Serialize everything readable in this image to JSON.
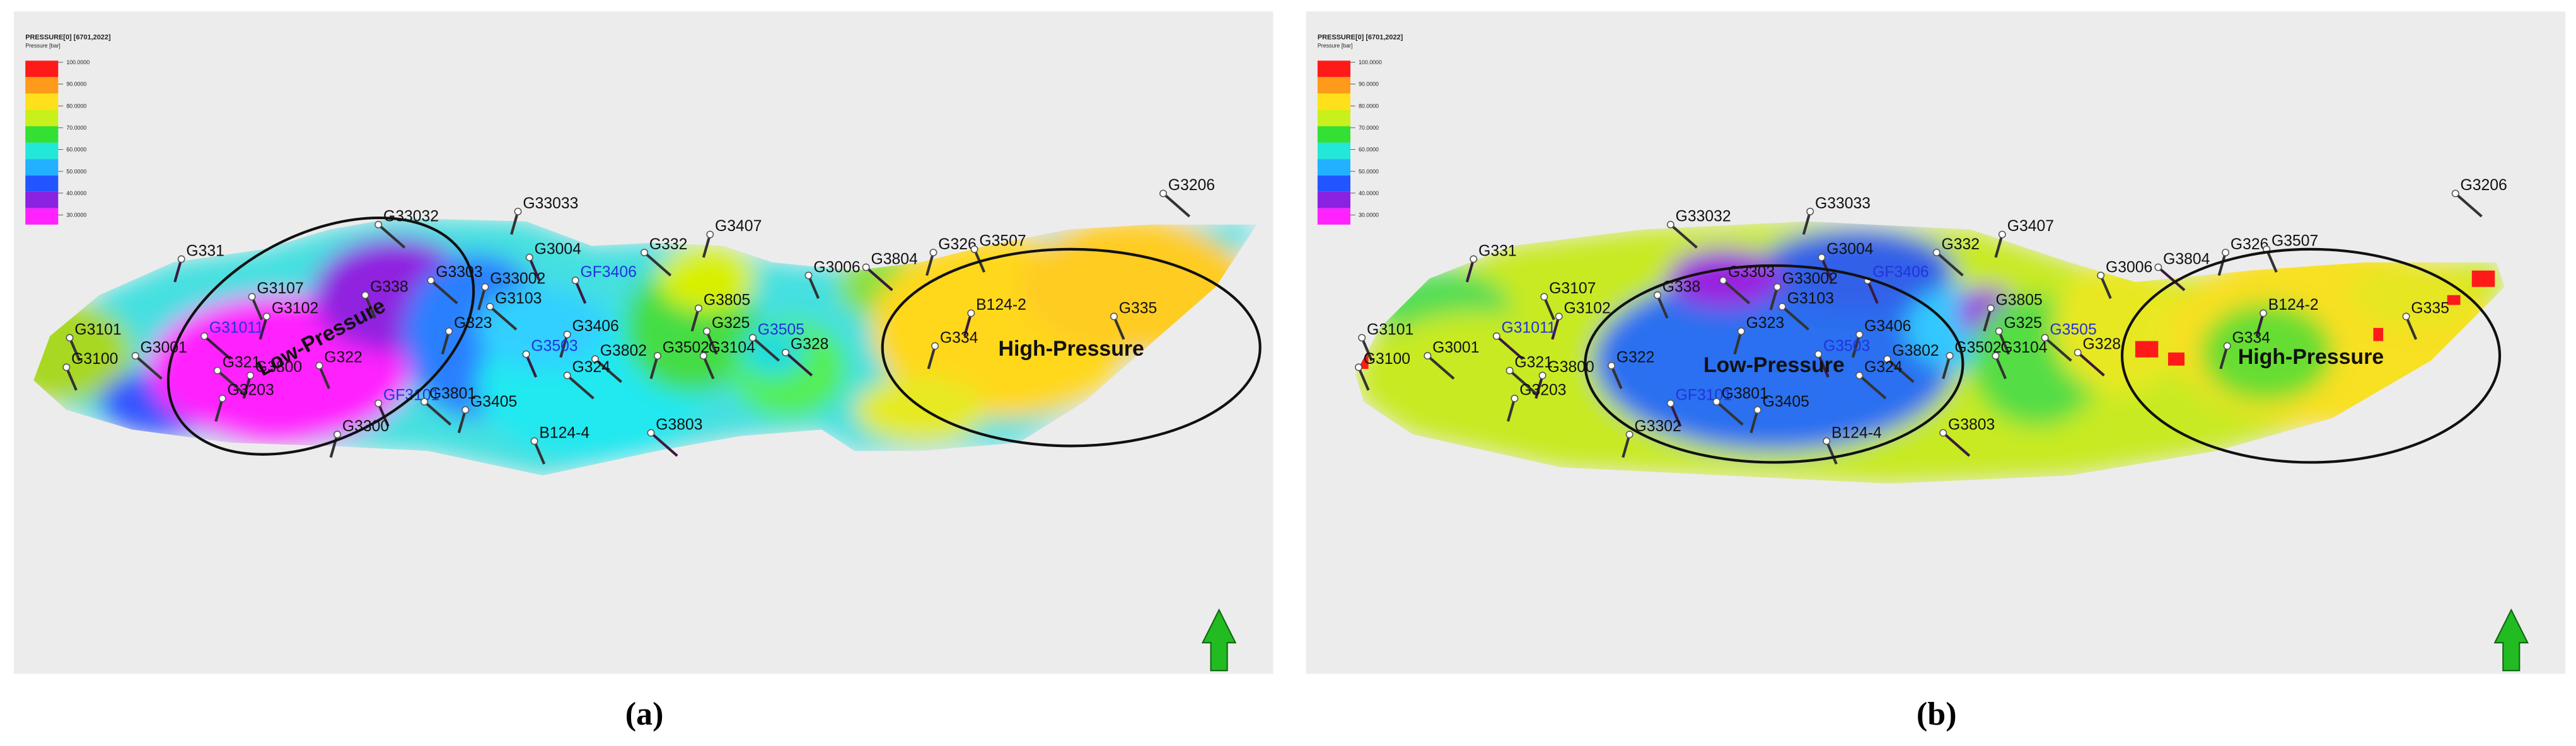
{
  "panels": [
    {
      "legend": {
        "title": "PRESSURE[0] [6701,2022]",
        "unit": "Pressure [bar]",
        "ticks": [
          "100.0000",
          "90.0000",
          "80.0000",
          "70.0000",
          "60.0000",
          "50.0000",
          "40.0000",
          "30.0000"
        ]
      },
      "wells": [
        "G331",
        "G3107",
        "G33032",
        "G33033",
        "G3004",
        "G332",
        "G3407",
        "G3006",
        "G3804",
        "G326",
        "G3507",
        "G3206",
        "G3102",
        "G338",
        "G3303",
        "G33002",
        "GF3406",
        "G3103",
        "G3805",
        "G3101",
        "G31011",
        "G323",
        "G325",
        "G3505",
        "B124-2",
        "G335",
        "G3001",
        "G3406",
        "G3503",
        "G3802",
        "G3502",
        "G3104",
        "G328",
        "G334",
        "G3100",
        "G321",
        "G3800",
        "G322",
        "G324",
        "G3203",
        "GF3101",
        "G3801",
        "G3405",
        "B124-4",
        "G3803",
        "G3300"
      ],
      "annotations": [
        "Low-Pressure",
        "High-Pressure"
      ],
      "caption": "(a)"
    },
    {
      "legend": {
        "title": "PRESSURE[0] [6701,2022]",
        "unit": "Pressure [bar]",
        "ticks": [
          "100.0000",
          "90.0000",
          "80.0000",
          "70.0000",
          "60.0000",
          "50.0000",
          "40.0000",
          "30.0000"
        ]
      },
      "wells": [
        "G331",
        "G3107",
        "G33032",
        "G33033",
        "G3004",
        "G332",
        "G3407",
        "G3006",
        "G3804",
        "G326",
        "G3507",
        "G3206",
        "G3102",
        "G338",
        "G3303",
        "G33002",
        "GF3406",
        "G3103",
        "G3805",
        "G3101",
        "G31011",
        "G323",
        "G325",
        "G3505",
        "B124-2",
        "G335",
        "G3001",
        "G3406",
        "G3503",
        "G3802",
        "G3502",
        "G3104",
        "G328",
        "G334",
        "G3100",
        "G321",
        "G3800",
        "G322",
        "G324",
        "G3203",
        "GF3101",
        "G3801",
        "G3405",
        "B124-4",
        "G3803",
        "G3302"
      ],
      "annotations": [
        "Low-Pressure",
        "High-Pressure"
      ],
      "caption": "(b)"
    }
  ]
}
